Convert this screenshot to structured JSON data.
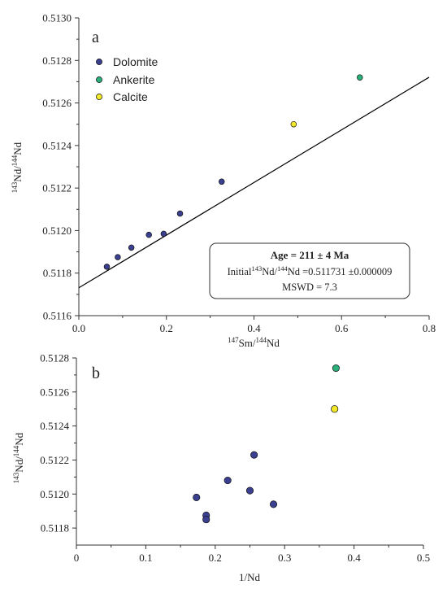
{
  "colors": {
    "dolomite": "#3a3f8f",
    "ankerite": "#2bb07a",
    "calcite": "#f2e829",
    "line": "#000000",
    "axis": "#333333"
  },
  "chart_data": [
    {
      "type": "scatter",
      "panel_label": "a",
      "xlabel": "147Sm/144Nd",
      "ylabel": "143Nd/144Nd",
      "xlim": [
        0,
        0.9
      ],
      "ylim": [
        0.5116,
        0.513
      ],
      "x_ticks": [
        "0.0",
        "0.2",
        "0.4",
        "0.6",
        "0.8"
      ],
      "y_ticks": [
        "0.5116",
        "0.5118",
        "0.5120",
        "0.5122",
        "0.5124",
        "0.5126",
        "0.5128",
        "0.5130"
      ],
      "legend": [
        "Dolomite",
        "Ankerite",
        "Calcite"
      ],
      "series": [
        {
          "name": "Dolomite",
          "x": [
            0.072,
            0.1,
            0.135,
            0.18,
            0.218,
            0.26,
            0.367
          ],
          "y": [
            0.51183,
            0.511875,
            0.51192,
            0.51198,
            0.511985,
            0.51208,
            0.51223
          ]
        },
        {
          "name": "Ankerite",
          "x": [
            0.722
          ],
          "y": [
            0.51272
          ]
        },
        {
          "name": "Calcite",
          "x": [
            0.552
          ],
          "y": [
            0.5125
          ]
        }
      ],
      "isochron": {
        "intercept": 0.511731,
        "slope": 0.0011
      },
      "annotation": {
        "age": "Age = 211 ± 4 Ma",
        "initial_prefix": "Initial",
        "initial_sup1": "143",
        "initial_mid": "Nd/",
        "initial_sup2": "144",
        "initial_value": "Nd =0.511731 ±0.000009",
        "mswd": "MSWD = 7.3"
      }
    },
    {
      "type": "scatter",
      "panel_label": "b",
      "xlabel": "1/Nd",
      "ylabel": "143Nd/144Nd",
      "xlim": [
        0,
        0.5
      ],
      "ylim": [
        0.5117,
        0.5128
      ],
      "x_ticks": [
        "0",
        "0.1",
        "0.2",
        "0.3",
        "0.4",
        "0.5"
      ],
      "y_ticks": [
        "0.5118",
        "0.5120",
        "0.5122",
        "0.5124",
        "0.5126",
        "0.5128"
      ],
      "series": [
        {
          "name": "Dolomite",
          "x": [
            0.173,
            0.187,
            0.187,
            0.218,
            0.25,
            0.256,
            0.284
          ],
          "y": [
            0.51198,
            0.511875,
            0.51185,
            0.51208,
            0.51202,
            0.51223,
            0.51194
          ]
        },
        {
          "name": "Ankerite",
          "x": [
            0.374
          ],
          "y": [
            0.51274
          ]
        },
        {
          "name": "Calcite",
          "x": [
            0.372
          ],
          "y": [
            0.5125
          ]
        }
      ]
    }
  ]
}
